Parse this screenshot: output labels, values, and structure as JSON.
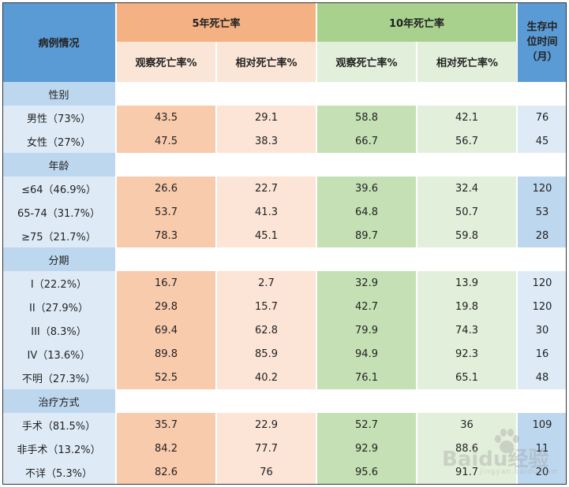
{
  "header": {
    "label_col": "病例情况",
    "five_year": "5年死亡率",
    "ten_year": "10年死亡率",
    "median": "生存中位时间（月）",
    "observed": "观察死亡率%",
    "relative": "相对死亡率%"
  },
  "groups": [
    {
      "title": "性别",
      "rows": [
        {
          "label": "男性（73%）",
          "obs5": "43.5",
          "rel5": "29.1",
          "obs10": "58.8",
          "rel10": "42.1",
          "median": "76"
        },
        {
          "label": "女性（27%）",
          "obs5": "47.5",
          "rel5": "38.3",
          "obs10": "66.7",
          "rel10": "56.7",
          "median": "45"
        }
      ]
    },
    {
      "title": "年龄",
      "rows": [
        {
          "label": "≤64（46.9%）",
          "obs5": "26.6",
          "rel5": "22.7",
          "obs10": "39.6",
          "rel10": "32.4",
          "median": "120"
        },
        {
          "label": "65-74（31.7%）",
          "obs5": "53.7",
          "rel5": "41.3",
          "obs10": "64.8",
          "rel10": "50.7",
          "median": "53"
        },
        {
          "label": "≥75（21.7%）",
          "obs5": "78.3",
          "rel5": "45.1",
          "obs10": "89.7",
          "rel10": "59.8",
          "median": "28"
        }
      ]
    },
    {
      "title": "分期",
      "rows": [
        {
          "label": "I（22.2%）",
          "obs5": "16.7",
          "rel5": "2.7",
          "obs10": "32.9",
          "rel10": "13.9",
          "median": "120"
        },
        {
          "label": "II（27.9%）",
          "obs5": "29.8",
          "rel5": "15.7",
          "obs10": "42.7",
          "rel10": "19.8",
          "median": "120"
        },
        {
          "label": "III（8.3%）",
          "obs5": "69.4",
          "rel5": "62.8",
          "obs10": "79.9",
          "rel10": "74.3",
          "median": "30"
        },
        {
          "label": "IV（13.6%）",
          "obs5": "89.8",
          "rel5": "85.9",
          "obs10": "94.9",
          "rel10": "92.3",
          "median": "16"
        },
        {
          "label": "不明（27.3%）",
          "obs5": "52.5",
          "rel5": "40.2",
          "obs10": "76.1",
          "rel10": "65.1",
          "median": "48"
        }
      ]
    },
    {
      "title": "治疗方式",
      "rows": [
        {
          "label": "手术（81.5%）",
          "obs5": "35.7",
          "rel5": "22.9",
          "obs10": "52.7",
          "rel10": "36",
          "median": "109"
        },
        {
          "label": "非手术（13.2%）",
          "obs5": "84.2",
          "rel5": "77.7",
          "obs10": "92.9",
          "rel10": "88.6",
          "median": "11"
        },
        {
          "label": "不详（5.3%）",
          "obs5": "82.6",
          "rel5": "76",
          "obs10": "95.6",
          "rel10": "91.7",
          "median": "20"
        }
      ]
    }
  ],
  "watermark": {
    "logo_text": "Baidu经验",
    "sub_text": "jingyan.baidu.com",
    "icon": "paw-icon"
  },
  "colors": {
    "header_blue": "#5b9bd5",
    "header_orange": "#f4b183",
    "header_green": "#a9d18e",
    "observed5_fill": "#f8cbad",
    "relative5_fill": "#fce4d6",
    "observed10_fill": "#c5e0b4",
    "relative10_fill": "#e2efda"
  }
}
